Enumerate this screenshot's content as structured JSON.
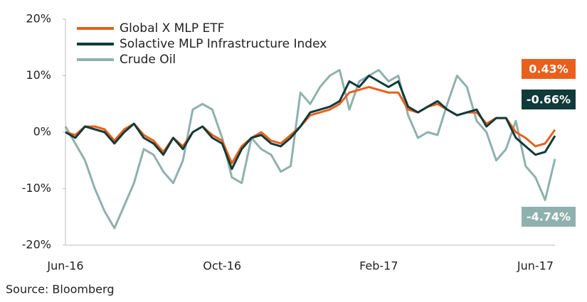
{
  "chart_data": {
    "type": "line",
    "source": "Source: Bloomberg",
    "categories": [
      "Jun-16",
      null,
      null,
      null,
      null,
      null,
      null,
      null,
      null,
      null,
      null,
      null,
      null,
      null,
      null,
      null,
      "Oct-16",
      null,
      null,
      null,
      null,
      null,
      null,
      null,
      null,
      null,
      null,
      null,
      null,
      null,
      null,
      null,
      "Feb-17",
      null,
      null,
      null,
      null,
      null,
      null,
      null,
      null,
      null,
      null,
      null,
      null,
      null,
      null,
      null,
      "Jun-17",
      null,
      null
    ],
    "series": [
      {
        "name": "Global X MLP ETF",
        "color": "#e8601c",
        "end_label": "0.43%",
        "values": [
          0,
          -0.5,
          1,
          1,
          0.5,
          -1.5,
          0.5,
          1.5,
          -0.5,
          -1.5,
          -3.5,
          -1,
          -2.5,
          0,
          1,
          -0.5,
          -1.5,
          -5.5,
          -2.5,
          -1,
          0,
          -1.5,
          -2,
          -0.5,
          1,
          3,
          3.5,
          4,
          5,
          7,
          7.5,
          8,
          7.5,
          7,
          7,
          4,
          3.5,
          4.5,
          5,
          4,
          3,
          3.5,
          3.5,
          1.5,
          2.5,
          2.5,
          0,
          -1,
          -2.5,
          -2,
          0.43
        ]
      },
      {
        "name": "Solactive MLP Infrastructure Index",
        "color": "#0f3b3a",
        "end_label": "-0.66%",
        "values": [
          0,
          -1,
          1,
          0.5,
          0,
          -2,
          0,
          1.5,
          -1,
          -2,
          -4,
          -1,
          -3,
          0,
          1,
          -1,
          -2,
          -6.5,
          -3,
          -1,
          -0.5,
          -2,
          -2.5,
          -1,
          1,
          3.5,
          4,
          4.5,
          5.5,
          9,
          8,
          10,
          9,
          8,
          9,
          4.5,
          3.5,
          4.5,
          5.5,
          4,
          3,
          3.5,
          4,
          1,
          2.5,
          2.5,
          -1,
          -2.5,
          -4,
          -3.5,
          -0.66
        ]
      },
      {
        "name": "Crude Oil",
        "color": "#8fb1ad",
        "end_label": "-4.74%",
        "values": [
          1,
          -2,
          -5,
          -10,
          -14,
          -17,
          -13,
          -9,
          -3,
          -4,
          -7,
          -9,
          -5,
          4,
          5,
          4,
          -1,
          -8,
          -9,
          -1,
          -3,
          -4,
          -7,
          -6,
          7,
          5,
          8,
          10,
          11,
          4,
          9,
          10,
          11,
          9,
          10,
          3,
          -1,
          0,
          -0.5,
          5,
          10,
          8,
          2,
          0,
          -5,
          -3,
          2,
          -6,
          -8,
          -12,
          -4.74
        ]
      }
    ],
    "ylim": [
      -20,
      20
    ],
    "yticks": [
      {
        "value": -20,
        "label": "-20%"
      },
      {
        "value": -10,
        "label": "-10%"
      },
      {
        "value": 0,
        "label": "0%"
      },
      {
        "value": 10,
        "label": "10%"
      },
      {
        "value": 20,
        "label": "20%"
      }
    ],
    "grid": false
  }
}
